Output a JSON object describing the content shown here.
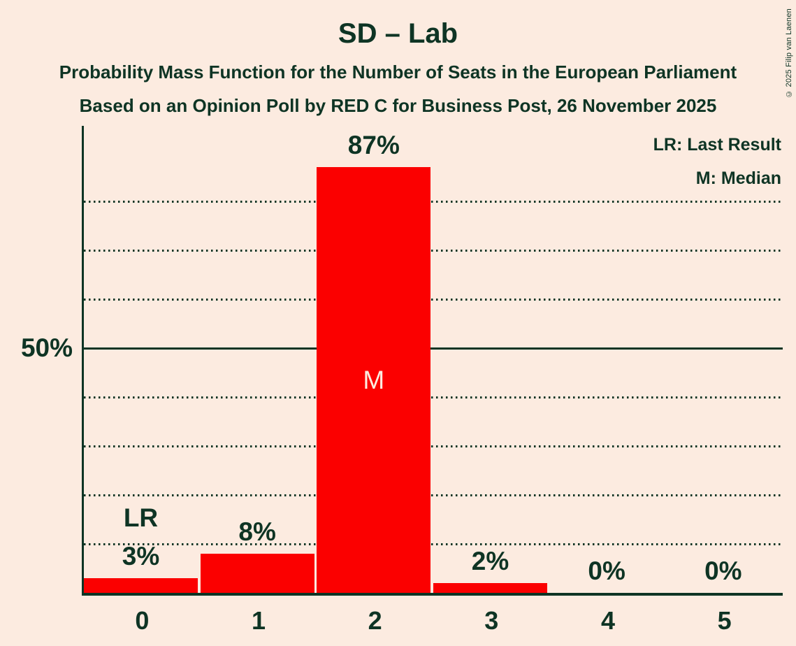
{
  "title": "SD – Lab",
  "subtitle1": "Probability Mass Function for the Number of Seats in the European Parliament",
  "subtitle2": "Based on an Opinion Poll by RED C for Business Post, 26 November 2025",
  "copyright": "© 2025 Filip van Laenen",
  "legend": {
    "lr": "LR: Last Result",
    "m": "M: Median"
  },
  "y_axis": {
    "label": "50%"
  },
  "colors": {
    "background": "#FCEBE0",
    "bar": "#FB0000",
    "ink": "#0E3424"
  },
  "chart_data": {
    "type": "bar",
    "title": "SD – Lab",
    "categories": [
      "0",
      "1",
      "2",
      "3",
      "4",
      "5"
    ],
    "values": [
      3,
      8,
      87,
      2,
      0,
      0
    ],
    "value_labels": [
      "3%",
      "8%",
      "87%",
      "2%",
      "0%",
      "0%"
    ],
    "xlabel": "Number of Seats",
    "ylabel": "Probability",
    "ylim": [
      0,
      95
    ],
    "grid": "dotted horizontal lines every 10%, solid line at 50%",
    "gridlines_dotted_pct": [
      10,
      20,
      30,
      40,
      60,
      70,
      80
    ],
    "solid_line_pct": 50,
    "legend_position": "top-right",
    "annotations": {
      "lr_marker": "LR",
      "lr_meaning": "Last Result",
      "last_result_seats": 0,
      "median_marker": "M",
      "median_meaning": "Median",
      "median_seats": 2
    }
  }
}
